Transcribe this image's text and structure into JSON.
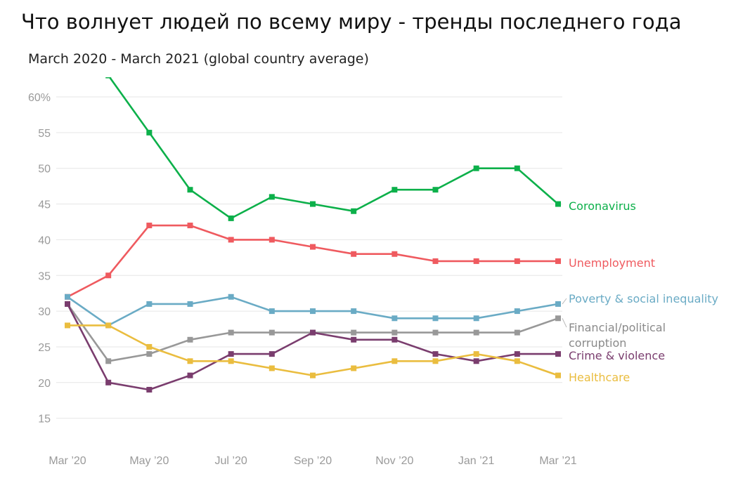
{
  "chart_data": {
    "type": "line",
    "title": "Что волнует людей по всему миру - тренды последнего года",
    "subtitle": "March 2020 - March 2021 (global country average)",
    "x": [
      "Mar 2020",
      "Apr 2020",
      "May 2020",
      "Jun 2020",
      "Jul 2020",
      "Aug 2020",
      "Sep 2020",
      "Oct 2020",
      "Nov 2020",
      "Dec 2020",
      "Jan 2021",
      "Feb 2021",
      "Mar 2021"
    ],
    "x_tick_labels": [
      "Mar ’20",
      "",
      "May ’20",
      "",
      "Jul ’20",
      "",
      "Sep ’20",
      "",
      "Nov ’20",
      "",
      "Jan ’21",
      "",
      "Mar ’21"
    ],
    "y_tick_labels": [
      "60%",
      "55",
      "50",
      "45",
      "40",
      "35",
      "30",
      "25",
      "20",
      "15"
    ],
    "y_ticks": [
      60,
      55,
      50,
      45,
      40,
      35,
      30,
      25,
      20,
      15
    ],
    "ylim": [
      12,
      64
    ],
    "grid": true,
    "legend": "inline-right",
    "series": [
      {
        "name": "Coronavirus",
        "color": "#0cb04a",
        "values": [
          null,
          63,
          55,
          47,
          43,
          46,
          45,
          44,
          47,
          47,
          50,
          50,
          45
        ]
      },
      {
        "name": "Unemployment",
        "color": "#ef5a5f",
        "values": [
          32,
          35,
          42,
          42,
          40,
          40,
          39,
          38,
          38,
          37,
          37,
          37,
          37
        ]
      },
      {
        "name": "Poverty & social inequality",
        "color": "#6aabc5",
        "values": [
          32,
          28,
          31,
          31,
          32,
          30,
          30,
          30,
          29,
          29,
          29,
          30,
          31
        ]
      },
      {
        "name": "Financial/political corruption",
        "color": "#989898",
        "values": [
          31,
          23,
          24,
          26,
          27,
          27,
          27,
          27,
          27,
          27,
          27,
          27,
          29
        ]
      },
      {
        "name": "Crime & violence",
        "color": "#7a3d6e",
        "values": [
          31,
          20,
          19,
          21,
          24,
          24,
          27,
          26,
          26,
          24,
          23,
          24,
          24
        ]
      },
      {
        "name": "Healthcare",
        "color": "#eabd3f",
        "values": [
          28,
          28,
          25,
          23,
          23,
          22,
          21,
          22,
          23,
          23,
          24,
          23,
          21
        ]
      }
    ]
  }
}
